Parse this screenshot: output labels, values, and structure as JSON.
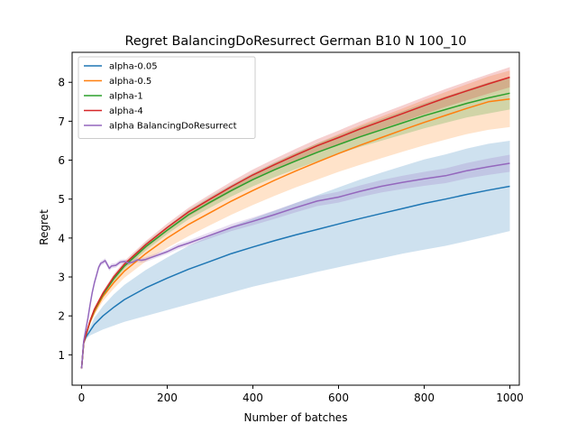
{
  "chart_data": {
    "type": "line",
    "title": "Regret BalancingDoResurrect German B10 N 100_10",
    "xlabel": "Number of batches",
    "ylabel": "Regret",
    "xlim": [
      -22,
      1022
    ],
    "ylim": [
      0.22,
      8.77
    ],
    "xticks": [
      0,
      200,
      400,
      600,
      800,
      1000
    ],
    "yticks": [
      1,
      2,
      3,
      4,
      5,
      6,
      7,
      8
    ],
    "grid": false,
    "legend_position": "upper left",
    "series": [
      {
        "name": "alpha-0.05",
        "color": "#1f77b4",
        "x": [
          0,
          5,
          10,
          20,
          30,
          50,
          75,
          100,
          150,
          200,
          250,
          300,
          350,
          400,
          450,
          500,
          550,
          600,
          650,
          700,
          750,
          800,
          850,
          900,
          950,
          1000
        ],
        "y": [
          0.65,
          1.3,
          1.45,
          1.62,
          1.78,
          2.0,
          2.22,
          2.42,
          2.72,
          2.97,
          3.2,
          3.4,
          3.6,
          3.77,
          3.93,
          4.08,
          4.22,
          4.36,
          4.5,
          4.63,
          4.76,
          4.89,
          5.0,
          5.12,
          5.23,
          5.33
        ],
        "lower": [
          0.6,
          1.28,
          1.4,
          1.5,
          1.55,
          1.65,
          1.75,
          1.85,
          2.0,
          2.15,
          2.3,
          2.45,
          2.6,
          2.75,
          2.88,
          3.0,
          3.13,
          3.25,
          3.37,
          3.48,
          3.6,
          3.7,
          3.8,
          3.92,
          4.05,
          4.18
        ],
        "upper": [
          0.7,
          1.35,
          1.5,
          1.72,
          1.95,
          2.25,
          2.55,
          2.8,
          3.18,
          3.5,
          3.8,
          4.05,
          4.3,
          4.5,
          4.7,
          4.9,
          5.1,
          5.3,
          5.5,
          5.68,
          5.85,
          6.02,
          6.15,
          6.3,
          6.42,
          6.5
        ]
      },
      {
        "name": "alpha-0.5",
        "color": "#ff7f0e",
        "x": [
          0,
          5,
          10,
          20,
          30,
          50,
          75,
          100,
          150,
          200,
          250,
          300,
          350,
          400,
          450,
          500,
          550,
          600,
          650,
          700,
          750,
          800,
          850,
          900,
          950,
          1000
        ],
        "y": [
          0.65,
          1.3,
          1.5,
          1.85,
          2.1,
          2.5,
          2.85,
          3.15,
          3.6,
          4.0,
          4.35,
          4.65,
          4.95,
          5.22,
          5.48,
          5.72,
          5.95,
          6.17,
          6.38,
          6.58,
          6.78,
          6.97,
          7.15,
          7.33,
          7.5,
          7.57
        ],
        "lower": [
          0.6,
          1.28,
          1.45,
          1.78,
          2.02,
          2.38,
          2.7,
          2.98,
          3.4,
          3.75,
          4.05,
          4.33,
          4.6,
          4.85,
          5.08,
          5.3,
          5.5,
          5.7,
          5.88,
          6.05,
          6.22,
          6.38,
          6.53,
          6.67,
          6.78,
          6.85
        ],
        "upper": [
          0.7,
          1.35,
          1.55,
          1.92,
          2.18,
          2.62,
          3.0,
          3.32,
          3.8,
          4.25,
          4.65,
          5.0,
          5.32,
          5.62,
          5.92,
          6.18,
          6.43,
          6.67,
          6.9,
          7.12,
          7.33,
          7.55,
          7.75,
          7.95,
          8.15,
          8.3
        ]
      },
      {
        "name": "alpha-1",
        "color": "#2ca02c",
        "x": [
          0,
          5,
          10,
          20,
          30,
          50,
          75,
          100,
          150,
          200,
          250,
          300,
          350,
          400,
          450,
          500,
          550,
          600,
          650,
          700,
          750,
          800,
          850,
          900,
          950,
          1000
        ],
        "y": [
          0.65,
          1.3,
          1.5,
          1.87,
          2.15,
          2.55,
          2.95,
          3.28,
          3.78,
          4.2,
          4.6,
          4.92,
          5.22,
          5.5,
          5.75,
          5.98,
          6.2,
          6.4,
          6.6,
          6.78,
          6.96,
          7.14,
          7.3,
          7.46,
          7.6,
          7.72
        ],
        "lower": [
          0.62,
          1.28,
          1.46,
          1.82,
          2.1,
          2.48,
          2.87,
          3.2,
          3.68,
          4.1,
          4.48,
          4.78,
          5.07,
          5.33,
          5.56,
          5.77,
          5.97,
          6.16,
          6.34,
          6.5,
          6.66,
          6.82,
          6.96,
          7.1,
          7.2,
          7.3
        ],
        "upper": [
          0.68,
          1.32,
          1.54,
          1.92,
          2.2,
          2.62,
          3.03,
          3.36,
          3.88,
          4.3,
          4.72,
          5.06,
          5.37,
          5.67,
          5.94,
          6.19,
          6.43,
          6.64,
          6.86,
          7.06,
          7.26,
          7.46,
          7.64,
          7.82,
          8.0,
          8.14
        ]
      },
      {
        "name": "alpha-4",
        "color": "#d62728",
        "x": [
          0,
          5,
          10,
          20,
          30,
          50,
          75,
          100,
          150,
          200,
          250,
          300,
          350,
          400,
          450,
          500,
          550,
          600,
          650,
          700,
          750,
          800,
          850,
          900,
          950,
          1000
        ],
        "y": [
          0.65,
          1.3,
          1.5,
          1.88,
          2.17,
          2.58,
          3.0,
          3.33,
          3.83,
          4.27,
          4.67,
          5.0,
          5.32,
          5.62,
          5.88,
          6.13,
          6.37,
          6.58,
          6.8,
          7.0,
          7.2,
          7.4,
          7.6,
          7.78,
          7.96,
          8.13
        ],
        "lower": [
          0.62,
          1.28,
          1.46,
          1.84,
          2.12,
          2.52,
          2.93,
          3.25,
          3.74,
          4.17,
          4.56,
          4.88,
          5.19,
          5.48,
          5.73,
          5.97,
          6.2,
          6.4,
          6.61,
          6.8,
          6.99,
          7.18,
          7.37,
          7.54,
          7.71,
          7.87
        ],
        "upper": [
          0.68,
          1.32,
          1.54,
          1.92,
          2.22,
          2.64,
          3.07,
          3.41,
          3.92,
          4.37,
          4.78,
          5.12,
          5.45,
          5.76,
          6.03,
          6.29,
          6.54,
          6.76,
          6.99,
          7.2,
          7.41,
          7.62,
          7.83,
          8.02,
          8.21,
          8.39
        ]
      },
      {
        "name": "alpha BalancingDoResurrect",
        "color": "#9467bd",
        "x": [
          0,
          5,
          10,
          15,
          20,
          25,
          30,
          35,
          40,
          45,
          50,
          55,
          60,
          65,
          70,
          80,
          90,
          100,
          110,
          120,
          130,
          140,
          150,
          175,
          200,
          225,
          250,
          300,
          350,
          400,
          450,
          500,
          550,
          600,
          650,
          700,
          750,
          800,
          850,
          900,
          950,
          1000
        ],
        "y": [
          0.65,
          1.35,
          1.65,
          1.95,
          2.3,
          2.6,
          2.85,
          3.05,
          3.25,
          3.35,
          3.38,
          3.42,
          3.32,
          3.22,
          3.28,
          3.3,
          3.38,
          3.4,
          3.36,
          3.38,
          3.44,
          3.43,
          3.45,
          3.55,
          3.65,
          3.78,
          3.87,
          4.07,
          4.27,
          4.43,
          4.6,
          4.78,
          4.95,
          5.05,
          5.2,
          5.33,
          5.43,
          5.52,
          5.6,
          5.73,
          5.83,
          5.92
        ],
        "lower": [
          0.6,
          1.3,
          1.6,
          1.9,
          2.24,
          2.54,
          2.79,
          2.99,
          3.19,
          3.29,
          3.32,
          3.36,
          3.26,
          3.16,
          3.22,
          3.24,
          3.32,
          3.34,
          3.3,
          3.32,
          3.38,
          3.37,
          3.39,
          3.49,
          3.59,
          3.71,
          3.8,
          3.99,
          4.18,
          4.33,
          4.49,
          4.66,
          4.82,
          4.91,
          5.05,
          5.17,
          5.26,
          5.34,
          5.41,
          5.53,
          5.62,
          5.7
        ],
        "upper": [
          0.7,
          1.4,
          1.7,
          2.0,
          2.36,
          2.66,
          2.91,
          3.11,
          3.31,
          3.41,
          3.44,
          3.48,
          3.38,
          3.28,
          3.34,
          3.36,
          3.44,
          3.46,
          3.42,
          3.44,
          3.5,
          3.49,
          3.51,
          3.61,
          3.71,
          3.85,
          3.94,
          4.15,
          4.36,
          4.53,
          4.71,
          4.9,
          5.08,
          5.19,
          5.35,
          5.49,
          5.6,
          5.7,
          5.79,
          5.93,
          6.04,
          6.14
        ]
      }
    ]
  }
}
